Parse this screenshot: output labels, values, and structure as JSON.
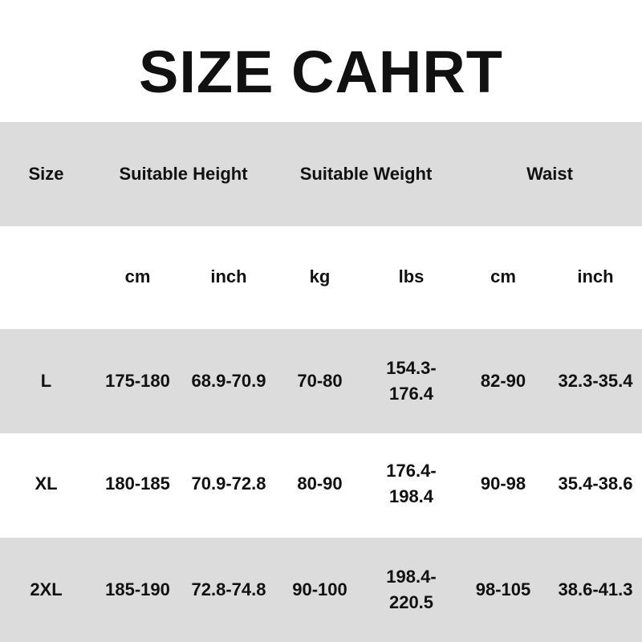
{
  "title": "SIZE CAHRT",
  "table": {
    "header": [
      "Size",
      "Suitable Height",
      "Suitable Weight",
      "Waist"
    ],
    "units": [
      "cm",
      "inch",
      "kg",
      "lbs",
      "cm",
      "inch"
    ],
    "rows": [
      [
        "L",
        "175-180",
        "68.9-70.9",
        "70-80",
        "154.3-176.4",
        "82-90",
        "32.3-35.4"
      ],
      [
        "XL",
        "180-185",
        "70.9-72.8",
        "80-90",
        "176.4-198.4",
        "90-98",
        "35.4-38.6"
      ],
      [
        "2XL",
        "185-190",
        "72.8-74.8",
        "90-100",
        "198.4-220.5",
        "98-105",
        "38.6-41.3"
      ]
    ]
  }
}
